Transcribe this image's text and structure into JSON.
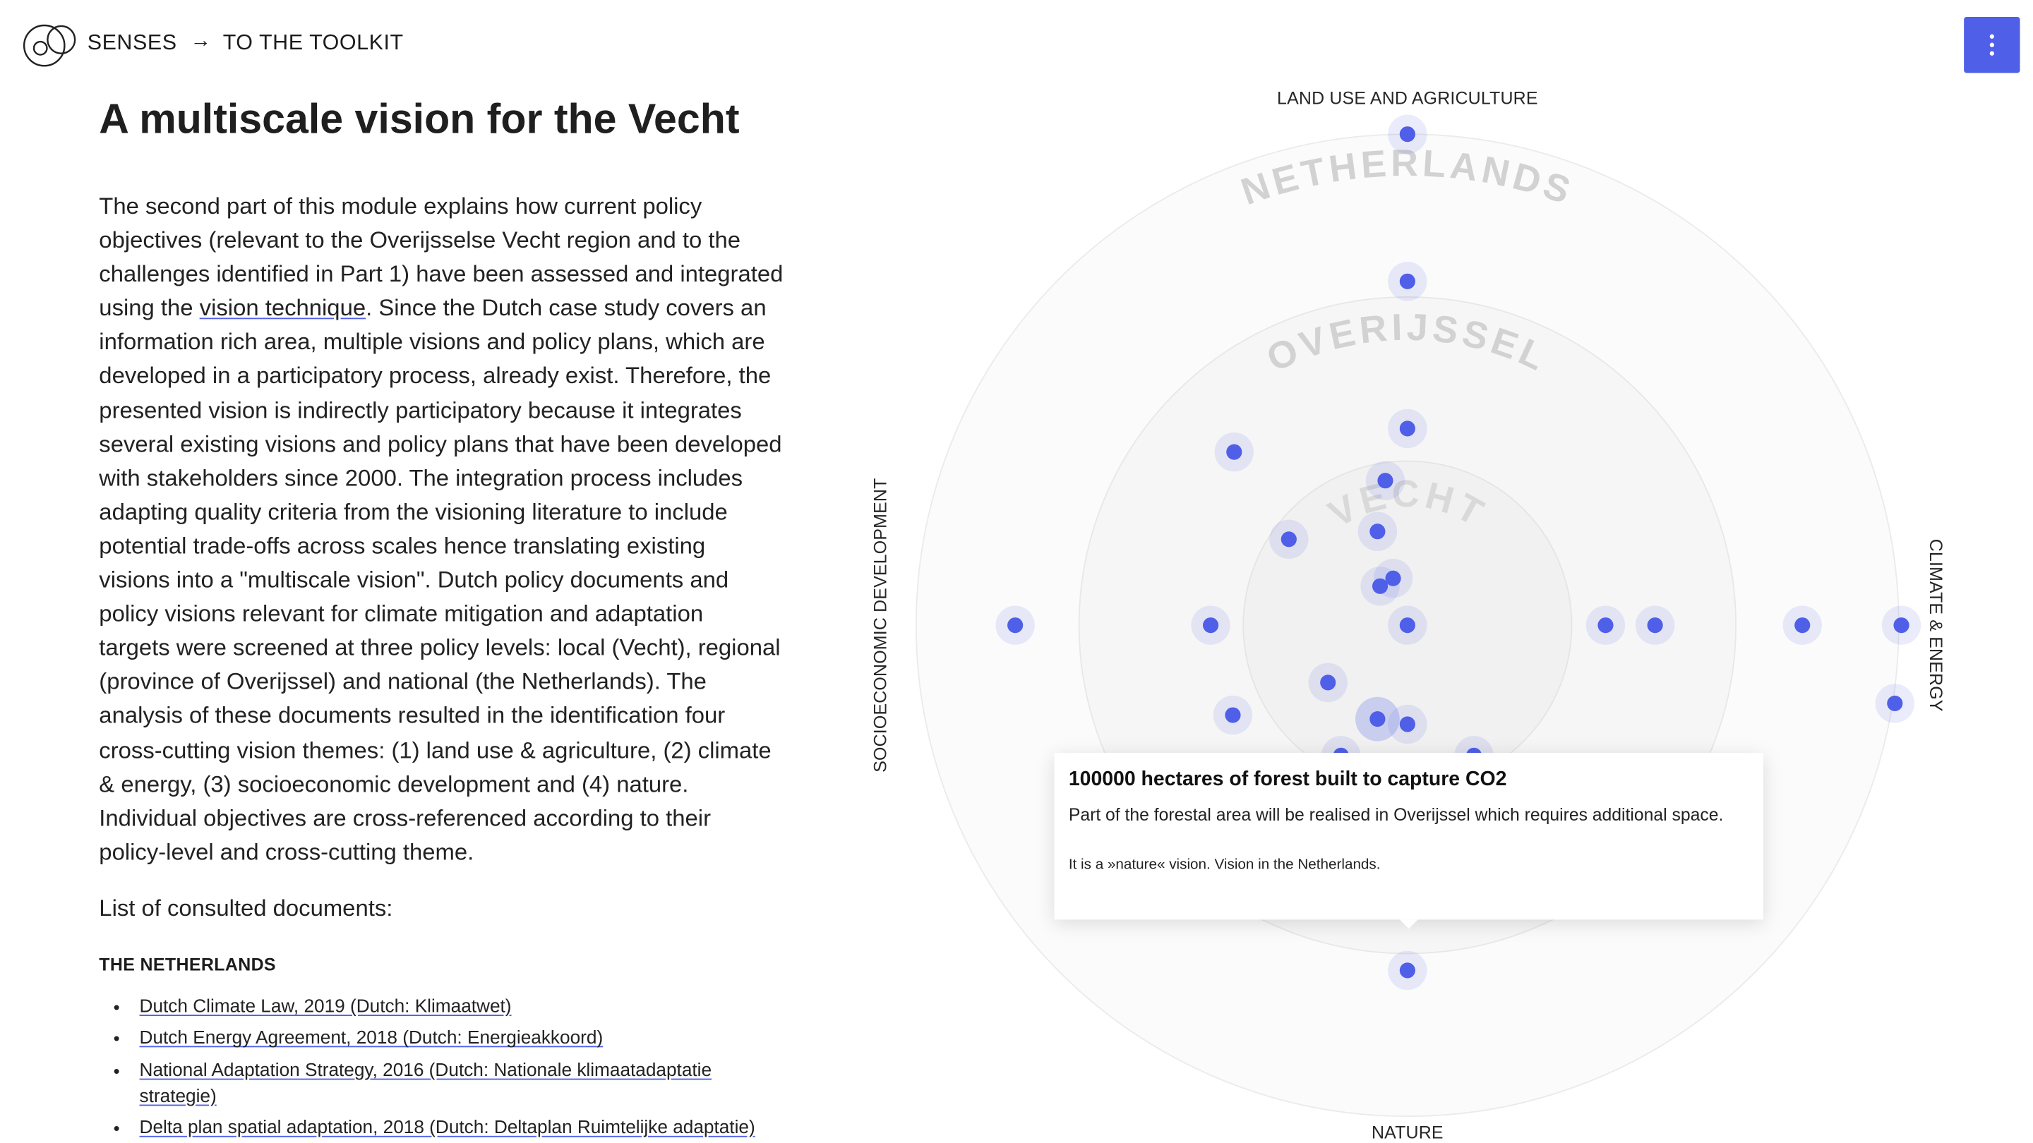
{
  "header": {
    "brand": "SENSES",
    "arrow": "→",
    "toolkit_link": "TO THE TOOLKIT"
  },
  "icons": {
    "logo": "senses-logo-icon",
    "arrow": "arrow-right-icon",
    "menu": "more-vertical-icon"
  },
  "colors": {
    "accent": "#4f5fe8",
    "text": "#222222",
    "ring_label": "#d2d2d2"
  },
  "article": {
    "title": "A multiscale vision for the Vecht",
    "intro_lines": [
      "The second part of this module explains how current policy",
      "objectives (relevant to the Overijsselse Vecht region and to the",
      "challenges identified in Part 1) have been assessed and integrated",
      {
        "before": "using the ",
        "link": "vision technique",
        "after": ". Since the Dutch case study covers an"
      },
      "information rich area, multiple visions and policy plans, which are",
      "developed in a participatory process, already exist. Therefore, the",
      "presented vision is indirectly participatory because it integrates",
      "several existing visions and policy plans that have been developed",
      "with stakeholders since 2000. The integration process includes",
      "adapting quality criteria from the visioning literature to include",
      "potential trade-offs across scales hence translating existing",
      "visions into a \"multiscale vision\". Dutch policy documents and",
      "policy visions relevant for climate mitigation and adaptation",
      "targets were screened at three policy levels: local (Vecht), regional",
      "(province of Overijssel) and national (the Netherlands). The",
      "analysis of these documents resulted in the identification four",
      "cross-cutting vision themes: (1) land use & agriculture, (2) climate",
      "& energy, (3) socioeconomic development and (4) nature.",
      "Individual objectives are cross-referenced according to their",
      "policy-level and cross-cutting theme."
    ],
    "list_heading": "List of consulted documents:",
    "section_heading": "THE NETHERLANDS",
    "documents": [
      "Dutch Climate Law, 2019 (Dutch: Klimaatwet)",
      "Dutch Energy Agreement, 2018 (Dutch: Energieakkoord)",
      "National Adaptation Strategy, 2016 (Dutch: Nationale klimaatadaptatie strategie)",
      "Delta plan spatial adaptation, 2018 (Dutch: Deltaplan Ruimtelijke adaptatie)"
    ]
  },
  "diagram": {
    "axes": {
      "top": "LAND USE AND AGRICULTURE",
      "left": "SOCIOECONOMIC DEVELOPMENT",
      "right": "CLIMATE & ENERGY",
      "bottom": "NATURE"
    },
    "scale_rings": [
      "NETHERLANDS",
      "OVERIJSSEL",
      "VECHT"
    ],
    "tooltip": {
      "title": "100000 hectares of forest built to capture CO2",
      "body": "Part of the forestal area will be realised in Overijssel which requires additional space.",
      "footer": "It is a »nature« vision. Vision in the Netherlands."
    }
  }
}
